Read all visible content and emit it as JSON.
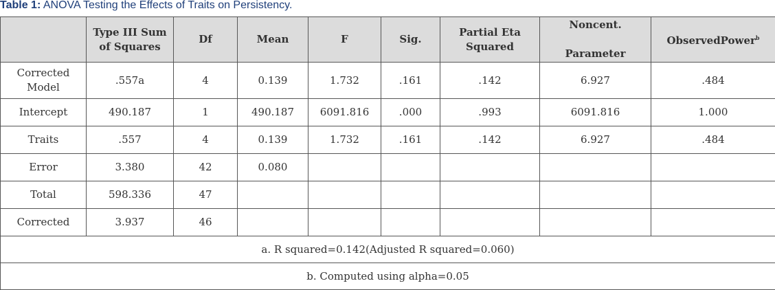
{
  "caption": {
    "lead": "Table 1:",
    "text": " ANOVA Testing the Effects of Traits on Persistency."
  },
  "header": {
    "source": "",
    "ss": "Type III Sum\nof Squares",
    "df": "Df",
    "mean": "Mean",
    "f": "F",
    "sig": "Sig.",
    "eta": "Partial Eta\nSquared",
    "noncent": "Noncent.\n\nParameter",
    "power": "ObservedPower",
    "power_sup": "b"
  },
  "rows": [
    {
      "source": "Corrected\nModel",
      "ss": ".557a",
      "df": "4",
      "mean": "0.139",
      "f": "1.732",
      "sig": ".161",
      "eta": ".142",
      "noncent": "6.927",
      "power": ".484"
    },
    {
      "source": "Intercept",
      "ss": "490.187",
      "df": "1",
      "mean": "490.187",
      "f": "6091.816",
      "sig": ".000",
      "eta": ".993",
      "noncent": "6091.816",
      "power": "1.000"
    },
    {
      "source": "Traits",
      "ss": ".557",
      "df": "4",
      "mean": "0.139",
      "f": "1.732",
      "sig": ".161",
      "eta": ".142",
      "noncent": "6.927",
      "power": ".484"
    },
    {
      "source": "Error",
      "ss": "3.380",
      "df": "42",
      "mean": "0.080",
      "f": "",
      "sig": "",
      "eta": "",
      "noncent": "",
      "power": ""
    },
    {
      "source": "Total",
      "ss": "598.336",
      "df": "47",
      "mean": "",
      "f": "",
      "sig": "",
      "eta": "",
      "noncent": "",
      "power": ""
    },
    {
      "source": "Corrected",
      "ss": "3.937",
      "df": "46",
      "mean": "",
      "f": "",
      "sig": "",
      "eta": "",
      "noncent": "",
      "power": ""
    }
  ],
  "notes": {
    "a": "a.  R squared=0.142(Adjusted R squared=0.060)",
    "b": "b.  Computed using alpha=0.05"
  }
}
